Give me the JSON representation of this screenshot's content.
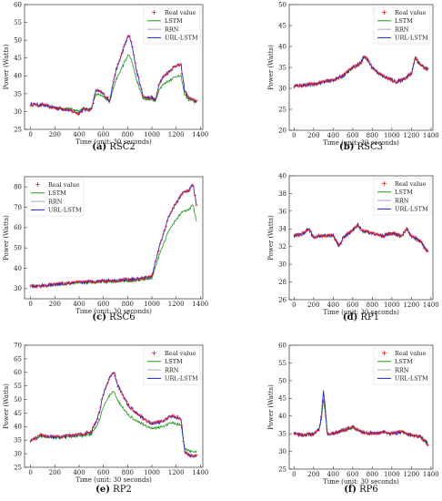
{
  "chart_data": [
    {
      "type": "line",
      "caption_tag": "(a)",
      "caption_name": "RSC2",
      "xlabel": "Time (unit: 30 seconds)",
      "ylabel": "Power (Watts)",
      "xlim": [
        -50,
        1420
      ],
      "ylim": [
        25,
        60
      ],
      "xticks": [
        0,
        200,
        400,
        600,
        800,
        1000,
        1200,
        1400
      ],
      "yticks": [
        25,
        30,
        35,
        40,
        45,
        50,
        55,
        60
      ],
      "legend_position": "top-right",
      "legend": [
        "Real value",
        "LSTM",
        "RRN",
        "URL-LSTM"
      ],
      "colors": {
        "real": "#e8202a",
        "lstm": "#1a9a1a",
        "rrn": "#a5a5c8",
        "url": "#2020d8"
      },
      "anchors": [
        [
          0,
          32
        ],
        [
          100,
          31.8
        ],
        [
          200,
          31
        ],
        [
          300,
          30.5
        ],
        [
          400,
          29.5
        ],
        [
          430,
          30.5
        ],
        [
          500,
          30.5
        ],
        [
          540,
          36
        ],
        [
          600,
          35
        ],
        [
          650,
          33
        ],
        [
          700,
          41
        ],
        [
          740,
          45
        ],
        [
          780,
          49
        ],
        [
          810,
          51.5
        ],
        [
          840,
          48
        ],
        [
          870,
          42
        ],
        [
          900,
          38
        ],
        [
          930,
          34
        ],
        [
          960,
          34
        ],
        [
          1000,
          34
        ],
        [
          1030,
          33
        ],
        [
          1060,
          38
        ],
        [
          1100,
          40
        ],
        [
          1150,
          41.5
        ],
        [
          1200,
          43
        ],
        [
          1240,
          43
        ],
        [
          1270,
          36
        ],
        [
          1300,
          34
        ],
        [
          1350,
          33
        ]
      ],
      "lstm_scale": 0.72
    },
    {
      "type": "line",
      "caption_tag": "(b)",
      "caption_name": "RSC3",
      "xlabel": "Time (unit: 30 seconds)",
      "ylabel": "Power (Watts)",
      "xlim": [
        -50,
        1420
      ],
      "ylim": [
        20,
        50
      ],
      "xticks": [
        0,
        200,
        400,
        600,
        800,
        1000,
        1200,
        1400
      ],
      "yticks": [
        20,
        25,
        30,
        35,
        40,
        45,
        50
      ],
      "legend_position": "top-right",
      "legend": [
        "Real value",
        "LSTM",
        "RRN",
        "URL-LSTM"
      ],
      "colors": {
        "real": "#e8202a",
        "lstm": "#1a9a1a",
        "rrn": "#a5a5c8",
        "url": "#2020d8"
      },
      "anchors": [
        [
          0,
          30.5
        ],
        [
          100,
          30.8
        ],
        [
          200,
          31
        ],
        [
          300,
          31.5
        ],
        [
          400,
          32
        ],
        [
          500,
          33
        ],
        [
          600,
          35
        ],
        [
          680,
          36
        ],
        [
          720,
          37.8
        ],
        [
          760,
          36.5
        ],
        [
          800,
          35
        ],
        [
          900,
          33
        ],
        [
          1000,
          32
        ],
        [
          1050,
          31.5
        ],
        [
          1100,
          32
        ],
        [
          1200,
          33.5
        ],
        [
          1240,
          37.5
        ],
        [
          1280,
          36
        ],
        [
          1330,
          35
        ],
        [
          1370,
          34.5
        ]
      ],
      "lstm_scale": 0.97
    },
    {
      "type": "line",
      "caption_tag": "(c)",
      "caption_name": "RSC6",
      "xlabel": "Time (unit: 30 seconds)",
      "ylabel": "Power (Watts)",
      "xlim": [
        -50,
        1420
      ],
      "ylim": [
        25,
        85
      ],
      "xticks": [
        0,
        200,
        400,
        600,
        800,
        1000,
        1200,
        1400
      ],
      "yticks": [
        30,
        40,
        50,
        60,
        70,
        80
      ],
      "legend_position": "top-left",
      "legend": [
        "Real value",
        "LSTM",
        "RRN",
        "URL-LSTM"
      ],
      "colors": {
        "real": "#e8202a",
        "lstm": "#1a9a1a",
        "rrn": "#a5a5c8",
        "url": "#2020d8"
      },
      "anchors": [
        [
          0,
          31
        ],
        [
          100,
          31.5
        ],
        [
          200,
          32
        ],
        [
          300,
          32.5
        ],
        [
          400,
          33
        ],
        [
          500,
          33.5
        ],
        [
          600,
          34
        ],
        [
          700,
          34
        ],
        [
          800,
          34.5
        ],
        [
          900,
          34.8
        ],
        [
          1000,
          36
        ],
        [
          1050,
          48
        ],
        [
          1100,
          58
        ],
        [
          1150,
          67
        ],
        [
          1200,
          72
        ],
        [
          1250,
          77
        ],
        [
          1300,
          78
        ],
        [
          1340,
          81
        ],
        [
          1370,
          70
        ]
      ],
      "lstm_scale": 0.8
    },
    {
      "type": "line",
      "caption_tag": "(d)",
      "caption_name": "RP1",
      "xlabel": "Time (unit: 30 seconds)",
      "ylabel": "Power (Watts)",
      "xlim": [
        -50,
        1420
      ],
      "ylim": [
        26,
        40
      ],
      "xticks": [
        0,
        200,
        400,
        600,
        800,
        1000,
        1200,
        1400
      ],
      "yticks": [
        26,
        28,
        30,
        32,
        34,
        36,
        38,
        40
      ],
      "legend_position": "top-right",
      "legend": [
        "Real value",
        "LSTM",
        "RRN",
        "URL-LSTM"
      ],
      "colors": {
        "real": "#e8202a",
        "lstm": "#1a9a1a",
        "rrn": "#a5a5c8",
        "url": "#2020d8"
      },
      "anchors": [
        [
          0,
          33.2
        ],
        [
          100,
          33.5
        ],
        [
          150,
          34
        ],
        [
          200,
          33
        ],
        [
          300,
          33.3
        ],
        [
          400,
          33.2
        ],
        [
          460,
          32
        ],
        [
          500,
          33
        ],
        [
          600,
          33.8
        ],
        [
          650,
          34.5
        ],
        [
          700,
          33.8
        ],
        [
          800,
          33.5
        ],
        [
          900,
          33.2
        ],
        [
          1000,
          33.5
        ],
        [
          1100,
          33.2
        ],
        [
          1150,
          34
        ],
        [
          1200,
          33.2
        ],
        [
          1300,
          32.5
        ],
        [
          1360,
          31.5
        ]
      ],
      "lstm_scale": 0.98
    },
    {
      "type": "line",
      "caption_tag": "(e)",
      "caption_name": "RP2",
      "xlabel": "Time (unit: 30 seconds)",
      "ylabel": "Power (Watts)",
      "xlim": [
        -50,
        1420
      ],
      "ylim": [
        25,
        70
      ],
      "xticks": [
        0,
        200,
        400,
        600,
        800,
        1000,
        1200,
        1400
      ],
      "yticks": [
        25,
        30,
        35,
        40,
        45,
        50,
        55,
        60,
        65,
        70
      ],
      "legend_position": "top-right",
      "legend": [
        "Real value",
        "LSTM",
        "RRN",
        "URL-LSTM"
      ],
      "colors": {
        "real": "#e8202a",
        "lstm": "#1a9a1a",
        "rrn": "#a5a5c8",
        "url": "#2020d8"
      },
      "anchors": [
        [
          0,
          35
        ],
        [
          100,
          37
        ],
        [
          200,
          36
        ],
        [
          300,
          36.5
        ],
        [
          400,
          37
        ],
        [
          500,
          38
        ],
        [
          560,
          44
        ],
        [
          600,
          52
        ],
        [
          650,
          58
        ],
        [
          690,
          60
        ],
        [
          720,
          55
        ],
        [
          760,
          52
        ],
        [
          800,
          48
        ],
        [
          850,
          46
        ],
        [
          900,
          44
        ],
        [
          1000,
          41
        ],
        [
          1100,
          42
        ],
        [
          1150,
          44
        ],
        [
          1200,
          43.5
        ],
        [
          1240,
          43
        ],
        [
          1270,
          31
        ],
        [
          1300,
          29.5
        ],
        [
          1350,
          29
        ]
      ],
      "lstm_scale": 0.72
    },
    {
      "type": "line",
      "caption_tag": "(f)",
      "caption_name": "RP6",
      "xlabel": "Time (unit: 30 seconds)",
      "ylabel": "Power (Watts)",
      "xlim": [
        -50,
        1420
      ],
      "ylim": [
        25,
        60
      ],
      "xticks": [
        0,
        200,
        400,
        600,
        800,
        1000,
        1200,
        1400
      ],
      "yticks": [
        25,
        30,
        35,
        40,
        45,
        50,
        55,
        60
      ],
      "legend_position": "top-right",
      "legend": [
        "Real value",
        "LSTM",
        "RRN",
        "URL-LSTM"
      ],
      "colors": {
        "real": "#e8202a",
        "lstm": "#1a9a1a",
        "rrn": "#a5a5c8",
        "url": "#2020d8"
      },
      "anchors": [
        [
          0,
          35
        ],
        [
          100,
          34.5
        ],
        [
          200,
          35
        ],
        [
          250,
          36
        ],
        [
          280,
          40
        ],
        [
          300,
          47
        ],
        [
          320,
          42
        ],
        [
          340,
          35
        ],
        [
          400,
          35
        ],
        [
          500,
          36
        ],
        [
          600,
          37
        ],
        [
          700,
          35.5
        ],
        [
          800,
          35
        ],
        [
          900,
          35.5
        ],
        [
          1000,
          35
        ],
        [
          1100,
          35.5
        ],
        [
          1200,
          34.5
        ],
        [
          1300,
          34
        ],
        [
          1370,
          32
        ]
      ],
      "lstm_scale": 0.82
    }
  ]
}
